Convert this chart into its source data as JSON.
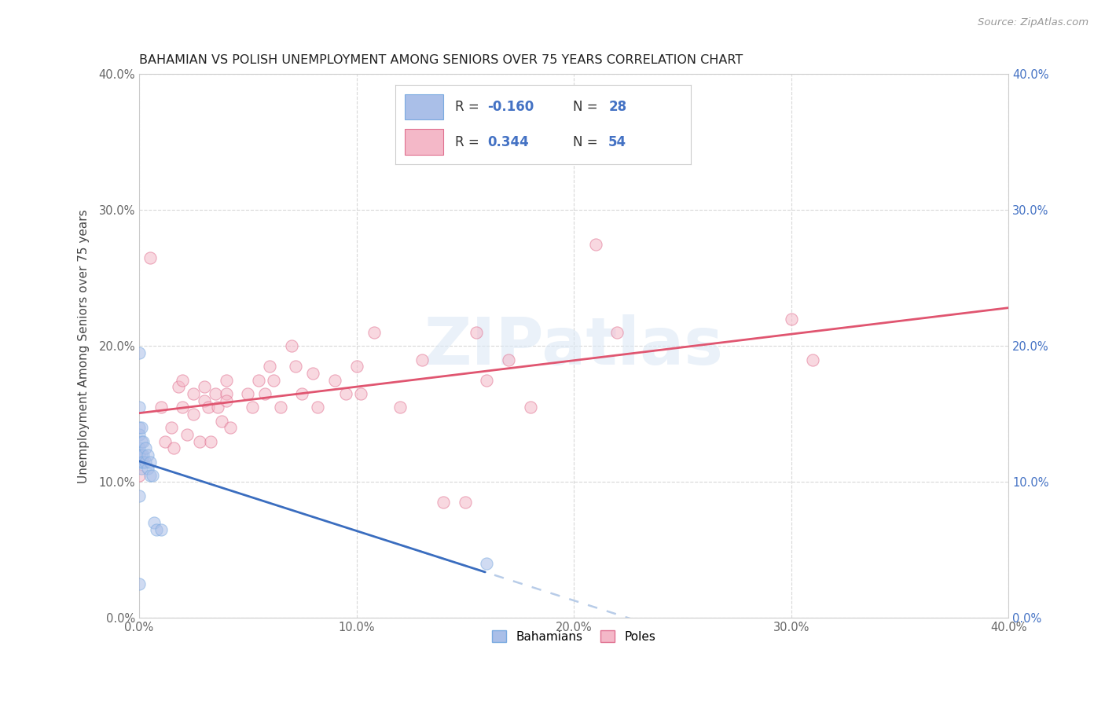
{
  "title": "BAHAMIAN VS POLISH UNEMPLOYMENT AMONG SENIORS OVER 75 YEARS CORRELATION CHART",
  "source": "Source: ZipAtlas.com",
  "ylabel": "Unemployment Among Seniors over 75 years",
  "xmin": 0.0,
  "xmax": 0.4,
  "ymin": 0.0,
  "ymax": 0.4,
  "r_bahamian": -0.16,
  "n_bahamian": 28,
  "r_polish": 0.344,
  "n_polish": 54,
  "bahamian_color": "#aabfe8",
  "bahamian_edge": "#7aaae0",
  "polish_color": "#f4b8c8",
  "polish_edge": "#e07090",
  "trendline_blue": "#3a6dbf",
  "trendline_pink": "#e05570",
  "trendline_dashed": "#b8cce8",
  "bg_color": "#ffffff",
  "grid_color": "#d8d8d8",
  "bahamian_x": [
    0.0,
    0.0,
    0.0,
    0.0,
    0.0,
    0.0,
    0.0,
    0.0,
    0.001,
    0.001,
    0.001,
    0.001,
    0.001,
    0.002,
    0.002,
    0.002,
    0.003,
    0.003,
    0.004,
    0.004,
    0.005,
    0.005,
    0.006,
    0.007,
    0.008,
    0.01,
    0.0,
    0.16
  ],
  "bahamian_y": [
    0.195,
    0.155,
    0.14,
    0.135,
    0.125,
    0.12,
    0.115,
    0.09,
    0.14,
    0.13,
    0.12,
    0.115,
    0.11,
    0.13,
    0.12,
    0.115,
    0.125,
    0.115,
    0.12,
    0.11,
    0.115,
    0.105,
    0.105,
    0.07,
    0.065,
    0.065,
    0.025,
    0.04
  ],
  "polish_x": [
    0.0,
    0.0,
    0.005,
    0.01,
    0.012,
    0.015,
    0.016,
    0.018,
    0.02,
    0.02,
    0.022,
    0.025,
    0.025,
    0.028,
    0.03,
    0.03,
    0.032,
    0.033,
    0.035,
    0.036,
    0.038,
    0.04,
    0.04,
    0.04,
    0.042,
    0.05,
    0.052,
    0.055,
    0.058,
    0.06,
    0.062,
    0.065,
    0.07,
    0.072,
    0.075,
    0.08,
    0.082,
    0.09,
    0.095,
    0.1,
    0.102,
    0.108,
    0.12,
    0.13,
    0.14,
    0.15,
    0.155,
    0.16,
    0.17,
    0.18,
    0.21,
    0.22,
    0.3,
    0.31
  ],
  "polish_y": [
    0.12,
    0.105,
    0.265,
    0.155,
    0.13,
    0.14,
    0.125,
    0.17,
    0.175,
    0.155,
    0.135,
    0.165,
    0.15,
    0.13,
    0.17,
    0.16,
    0.155,
    0.13,
    0.165,
    0.155,
    0.145,
    0.175,
    0.165,
    0.16,
    0.14,
    0.165,
    0.155,
    0.175,
    0.165,
    0.185,
    0.175,
    0.155,
    0.2,
    0.185,
    0.165,
    0.18,
    0.155,
    0.175,
    0.165,
    0.185,
    0.165,
    0.21,
    0.155,
    0.19,
    0.085,
    0.085,
    0.21,
    0.175,
    0.19,
    0.155,
    0.275,
    0.21,
    0.22,
    0.19
  ]
}
